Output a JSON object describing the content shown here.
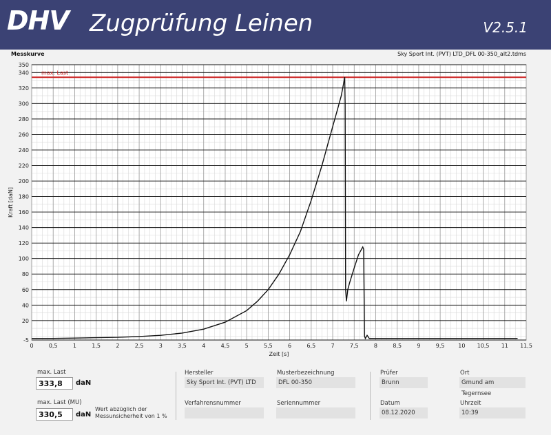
{
  "header": {
    "logo_text": "DHV",
    "title": "Zugprüfung Leinen",
    "version": "V2.5.1"
  },
  "chart_header": {
    "title": "Messkurve",
    "file": "Sky Sport Int. (PVT) LTD_DFL 00-350_alt2.tdms"
  },
  "chart_data": {
    "type": "line",
    "xlabel": "Zeit [s]",
    "ylabel": "Kraft [daN]",
    "xlim": [
      0,
      11.5
    ],
    "ylim": [
      -5,
      350
    ],
    "x_ticks": [
      "0",
      "0,5",
      "1",
      "1,5",
      "2",
      "2,5",
      "3",
      "3,5",
      "4",
      "4,5",
      "5",
      "5,5",
      "6",
      "6,5",
      "7",
      "7,5",
      "8",
      "8,5",
      "9",
      "9,5",
      "10",
      "10,5",
      "11",
      "11,5"
    ],
    "y_ticks": [
      "-5",
      "20",
      "40",
      "60",
      "80",
      "100",
      "120",
      "140",
      "160",
      "180",
      "200",
      "220",
      "240",
      "260",
      "280",
      "300",
      "320",
      "340",
      "350"
    ],
    "max_line": {
      "label": "max. Last",
      "value": 333.8,
      "color": "#cc2222"
    },
    "series": [
      {
        "color": "#111111",
        "points": [
          [
            0,
            -3
          ],
          [
            0.5,
            -3
          ],
          [
            1,
            -2.5
          ],
          [
            1.5,
            -2
          ],
          [
            2,
            -1.5
          ],
          [
            2.5,
            -0.5
          ],
          [
            3,
            1
          ],
          [
            3.5,
            4
          ],
          [
            4,
            9
          ],
          [
            4.5,
            18
          ],
          [
            5,
            33
          ],
          [
            5.25,
            45
          ],
          [
            5.5,
            60
          ],
          [
            5.75,
            80
          ],
          [
            6,
            105
          ],
          [
            6.25,
            135
          ],
          [
            6.5,
            175
          ],
          [
            6.75,
            220
          ],
          [
            7,
            270
          ],
          [
            7.1,
            290
          ],
          [
            7.2,
            310
          ],
          [
            7.25,
            325
          ],
          [
            7.28,
            334
          ],
          [
            7.29,
            300
          ],
          [
            7.3,
            60
          ],
          [
            7.32,
            45
          ],
          [
            7.35,
            60
          ],
          [
            7.4,
            70
          ],
          [
            7.5,
            88
          ],
          [
            7.6,
            105
          ],
          [
            7.7,
            115
          ],
          [
            7.72,
            112
          ],
          [
            7.74,
            0
          ],
          [
            7.76,
            -3
          ],
          [
            7.8,
            1
          ],
          [
            7.85,
            -3
          ],
          [
            8,
            -3
          ],
          [
            9,
            -3
          ],
          [
            10,
            -3
          ],
          [
            11,
            -3
          ],
          [
            11.3,
            -3
          ]
        ]
      }
    ]
  },
  "results": {
    "max_last_label": "max. Last",
    "max_last_value": "333,8",
    "max_last_unit": "daN",
    "max_last_mu_label": "max. Last (MU)",
    "max_last_mu_value": "330,5",
    "max_last_mu_unit": "daN",
    "mu_note": "Wert abzüglich der Messunsicherheit von 1 %"
  },
  "fields": {
    "hersteller_label": "Hersteller",
    "hersteller": "Sky Sport Int. (PVT) LTD",
    "muster_label": "Musterbezeichnung",
    "muster": "DFL 00-350",
    "verfahren_label": "Verfahrensnummer",
    "verfahren": "",
    "serien_label": "Seriennummer",
    "serien": "",
    "pruefer_label": "Prüfer",
    "pruefer": "Brunn",
    "ort_label": "Ort",
    "ort": "Gmund am Tegernsee",
    "datum_label": "Datum",
    "datum": "08.12.2020",
    "uhrzeit_label": "Uhrzeit",
    "uhrzeit": "10:39"
  }
}
